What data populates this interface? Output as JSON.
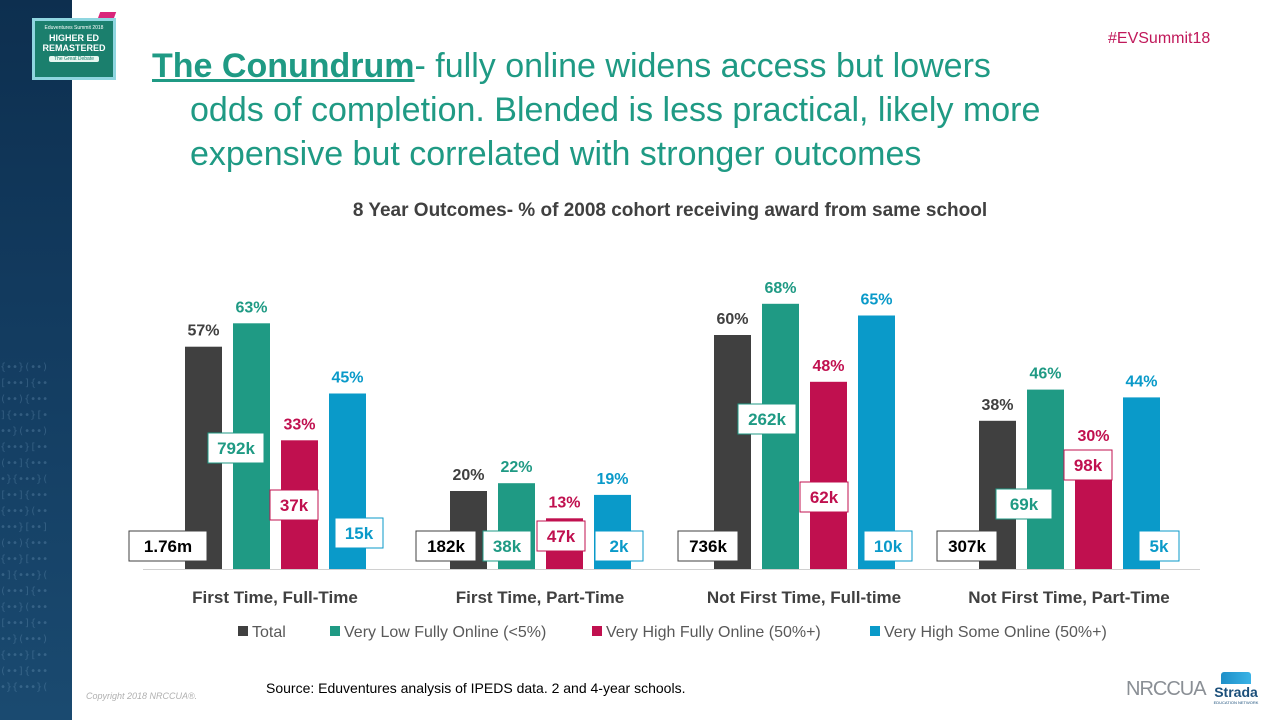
{
  "hashtag": "#EVSummit18",
  "logo": {
    "line1": "Eduventures Summit 2018",
    "line2": "HIGHER ED REMASTERED",
    "line3": "The Great Debate"
  },
  "slide_title": {
    "lead": "The Conundrum",
    "line1_rest": "- fully online widens access but lowers",
    "line2": "odds of completion. Blended is less practical, likely more",
    "line3": "expensive but correlated with stronger outcomes"
  },
  "chart_data": {
    "type": "bar",
    "title": "8 Year Outcomes- % of 2008 cohort receiving award from same school",
    "categories": [
      "First Time, Full-Time",
      "First Time, Part-Time",
      "Not First Time, Full-time",
      "Not First Time, Part-Time"
    ],
    "ylim": [
      0,
      80
    ],
    "grid": false,
    "legend_position": "bottom",
    "series": [
      {
        "name": "Total",
        "color": "#404040",
        "values": [
          57,
          20,
          60,
          38
        ],
        "labels": [
          "57%",
          "20%",
          "60%",
          "38%"
        ],
        "counts": [
          "1.76m",
          "182k",
          "736k",
          "307k"
        ]
      },
      {
        "name": "Very Low Fully Online (<5%)",
        "color": "#1f9a84",
        "values": [
          63,
          22,
          68,
          46
        ],
        "labels": [
          "63%",
          "22%",
          "68%",
          "46%"
        ],
        "counts": [
          "792k",
          "38k",
          "262k",
          "69k"
        ]
      },
      {
        "name": "Very High Fully Online (50%+)",
        "color": "#c0104f",
        "values": [
          33,
          13,
          48,
          30
        ],
        "labels": [
          "33%",
          "13%",
          "48%",
          "30%"
        ],
        "counts": [
          "37k",
          "47k",
          "62k",
          "98k"
        ]
      },
      {
        "name": "Very High Some Online (50%+)",
        "color": "#0a9ac9",
        "values": [
          45,
          19,
          65,
          44
        ],
        "labels": [
          "45%",
          "19%",
          "65%",
          "44%"
        ],
        "counts": [
          "15k",
          "2k",
          "10k",
          "5k"
        ]
      }
    ]
  },
  "footer": {
    "source": "Source: Eduventures analysis of IPEDS data. 2 and 4-year schools.",
    "copyright": "Copyright 2018 NRCCUA®.",
    "brand1": "NRCCUA",
    "brand2": "Strada",
    "brand2_sub": "EDUCATION NETWORK"
  }
}
